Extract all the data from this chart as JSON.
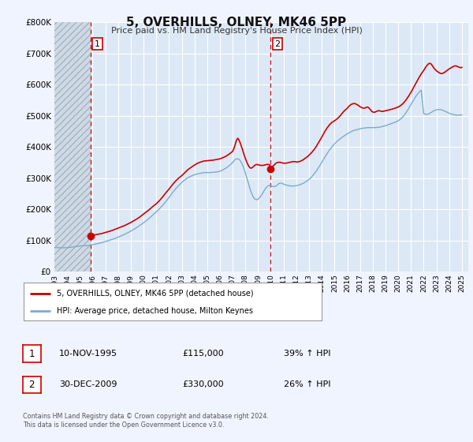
{
  "title": "5, OVERHILLS, OLNEY, MK46 5PP",
  "subtitle": "Price paid vs. HM Land Registry's House Price Index (HPI)",
  "bg_color": "#f0f4ff",
  "plot_bg_color": "#dce8f5",
  "hatch_bg_color": "#c8d8e8",
  "grid_color": "#ffffff",
  "red_line_color": "#cc0000",
  "blue_line_color": "#7aacce",
  "ylim": [
    0,
    800000
  ],
  "yticks": [
    0,
    100000,
    200000,
    300000,
    400000,
    500000,
    600000,
    700000,
    800000
  ],
  "xmin": 1993.0,
  "xmax": 2025.5,
  "xticks": [
    1993,
    1994,
    1995,
    1996,
    1997,
    1998,
    1999,
    2000,
    2001,
    2002,
    2003,
    2004,
    2005,
    2006,
    2007,
    2008,
    2009,
    2010,
    2011,
    2012,
    2013,
    2014,
    2015,
    2016,
    2017,
    2018,
    2019,
    2020,
    2021,
    2022,
    2023,
    2024,
    2025
  ],
  "transaction1_x": 1995.86,
  "transaction1_y": 115000,
  "transaction1_label": "1",
  "transaction1_date": "10-NOV-1995",
  "transaction1_price": "£115,000",
  "transaction1_hpi": "39% ↑ HPI",
  "transaction2_x": 2009.99,
  "transaction2_y": 330000,
  "transaction2_label": "2",
  "transaction2_date": "30-DEC-2009",
  "transaction2_price": "£330,000",
  "transaction2_hpi": "26% ↑ HPI",
  "vline1_x": 1995.86,
  "vline2_x": 2009.99,
  "legend_line1": "5, OVERHILLS, OLNEY, MK46 5PP (detached house)",
  "legend_line2": "HPI: Average price, detached house, Milton Keynes",
  "footer1": "Contains HM Land Registry data © Crown copyright and database right 2024.",
  "footer2": "This data is licensed under the Open Government Licence v3.0.",
  "red_data": [
    [
      1995.86,
      115000
    ],
    [
      1996.0,
      117000
    ],
    [
      1996.25,
      119000
    ],
    [
      1996.5,
      121000
    ],
    [
      1996.75,
      123000
    ],
    [
      1997.0,
      126000
    ],
    [
      1997.25,
      129000
    ],
    [
      1997.5,
      132000
    ],
    [
      1997.75,
      136000
    ],
    [
      1998.0,
      140000
    ],
    [
      1998.25,
      144000
    ],
    [
      1998.5,
      148000
    ],
    [
      1998.75,
      153000
    ],
    [
      1999.0,
      158000
    ],
    [
      1999.25,
      164000
    ],
    [
      1999.5,
      170000
    ],
    [
      1999.75,
      177000
    ],
    [
      2000.0,
      185000
    ],
    [
      2000.25,
      193000
    ],
    [
      2000.5,
      201000
    ],
    [
      2000.75,
      210000
    ],
    [
      2001.0,
      218000
    ],
    [
      2001.25,
      228000
    ],
    [
      2001.5,
      240000
    ],
    [
      2001.75,
      253000
    ],
    [
      2002.0,
      265000
    ],
    [
      2002.25,
      278000
    ],
    [
      2002.5,
      290000
    ],
    [
      2002.75,
      300000
    ],
    [
      2003.0,
      308000
    ],
    [
      2003.25,
      318000
    ],
    [
      2003.5,
      328000
    ],
    [
      2003.75,
      335000
    ],
    [
      2004.0,
      342000
    ],
    [
      2004.25,
      348000
    ],
    [
      2004.5,
      352000
    ],
    [
      2004.75,
      355000
    ],
    [
      2005.0,
      356000
    ],
    [
      2005.25,
      357000
    ],
    [
      2005.5,
      358000
    ],
    [
      2005.75,
      360000
    ],
    [
      2006.0,
      362000
    ],
    [
      2006.25,
      366000
    ],
    [
      2006.5,
      371000
    ],
    [
      2006.75,
      378000
    ],
    [
      2007.0,
      386000
    ],
    [
      2007.1,
      395000
    ],
    [
      2007.2,
      408000
    ],
    [
      2007.3,
      422000
    ],
    [
      2007.4,
      428000
    ],
    [
      2007.5,
      422000
    ],
    [
      2007.6,
      412000
    ],
    [
      2007.7,
      400000
    ],
    [
      2007.8,
      388000
    ],
    [
      2007.9,
      375000
    ],
    [
      2008.0,
      363000
    ],
    [
      2008.1,
      352000
    ],
    [
      2008.2,
      343000
    ],
    [
      2008.3,
      336000
    ],
    [
      2008.4,
      332000
    ],
    [
      2008.5,
      333000
    ],
    [
      2008.6,
      336000
    ],
    [
      2008.7,
      340000
    ],
    [
      2008.8,
      343000
    ],
    [
      2008.9,
      344000
    ],
    [
      2009.0,
      343000
    ],
    [
      2009.1,
      342000
    ],
    [
      2009.2,
      341000
    ],
    [
      2009.3,
      341000
    ],
    [
      2009.4,
      341000
    ],
    [
      2009.5,
      342000
    ],
    [
      2009.6,
      343000
    ],
    [
      2009.7,
      344000
    ],
    [
      2009.8,
      344000
    ],
    [
      2009.9,
      343000
    ],
    [
      2009.99,
      330000
    ],
    [
      2010.1,
      335000
    ],
    [
      2010.2,
      340000
    ],
    [
      2010.3,
      344000
    ],
    [
      2010.4,
      348000
    ],
    [
      2010.5,
      350000
    ],
    [
      2010.6,
      351000
    ],
    [
      2010.7,
      351000
    ],
    [
      2010.8,
      350000
    ],
    [
      2010.9,
      349000
    ],
    [
      2011.0,
      348000
    ],
    [
      2011.1,
      348000
    ],
    [
      2011.2,
      348000
    ],
    [
      2011.3,
      349000
    ],
    [
      2011.4,
      350000
    ],
    [
      2011.5,
      351000
    ],
    [
      2011.6,
      352000
    ],
    [
      2011.7,
      353000
    ],
    [
      2011.8,
      353000
    ],
    [
      2011.9,
      353000
    ],
    [
      2012.0,
      352000
    ],
    [
      2012.1,
      352000
    ],
    [
      2012.2,
      353000
    ],
    [
      2012.3,
      354000
    ],
    [
      2012.4,
      356000
    ],
    [
      2012.5,
      358000
    ],
    [
      2012.6,
      361000
    ],
    [
      2012.7,
      364000
    ],
    [
      2012.8,
      367000
    ],
    [
      2012.9,
      370000
    ],
    [
      2013.0,
      374000
    ],
    [
      2013.2,
      382000
    ],
    [
      2013.4,
      392000
    ],
    [
      2013.6,
      404000
    ],
    [
      2013.8,
      418000
    ],
    [
      2014.0,
      432000
    ],
    [
      2014.2,
      447000
    ],
    [
      2014.4,
      460000
    ],
    [
      2014.6,
      471000
    ],
    [
      2014.8,
      479000
    ],
    [
      2015.0,
      484000
    ],
    [
      2015.2,
      490000
    ],
    [
      2015.4,
      498000
    ],
    [
      2015.6,
      508000
    ],
    [
      2015.8,
      517000
    ],
    [
      2016.0,
      524000
    ],
    [
      2016.1,
      529000
    ],
    [
      2016.2,
      533000
    ],
    [
      2016.3,
      536000
    ],
    [
      2016.4,
      538000
    ],
    [
      2016.5,
      539000
    ],
    [
      2016.6,
      539000
    ],
    [
      2016.7,
      537000
    ],
    [
      2016.8,
      535000
    ],
    [
      2016.9,
      532000
    ],
    [
      2017.0,
      529000
    ],
    [
      2017.1,
      527000
    ],
    [
      2017.2,
      525000
    ],
    [
      2017.3,
      524000
    ],
    [
      2017.4,
      525000
    ],
    [
      2017.5,
      527000
    ],
    [
      2017.6,
      528000
    ],
    [
      2017.7,
      525000
    ],
    [
      2017.8,
      520000
    ],
    [
      2017.9,
      515000
    ],
    [
      2018.0,
      512000
    ],
    [
      2018.1,
      511000
    ],
    [
      2018.2,
      512000
    ],
    [
      2018.3,
      514000
    ],
    [
      2018.4,
      516000
    ],
    [
      2018.5,
      516000
    ],
    [
      2018.6,
      515000
    ],
    [
      2018.7,
      514000
    ],
    [
      2018.8,
      514000
    ],
    [
      2018.9,
      515000
    ],
    [
      2019.0,
      516000
    ],
    [
      2019.2,
      518000
    ],
    [
      2019.4,
      520000
    ],
    [
      2019.6,
      522000
    ],
    [
      2019.8,
      525000
    ],
    [
      2020.0,
      528000
    ],
    [
      2020.2,
      533000
    ],
    [
      2020.4,
      540000
    ],
    [
      2020.6,
      550000
    ],
    [
      2020.8,
      562000
    ],
    [
      2021.0,
      575000
    ],
    [
      2021.2,
      590000
    ],
    [
      2021.4,
      605000
    ],
    [
      2021.6,
      620000
    ],
    [
      2021.8,
      634000
    ],
    [
      2022.0,
      645000
    ],
    [
      2022.1,
      652000
    ],
    [
      2022.2,
      658000
    ],
    [
      2022.3,
      663000
    ],
    [
      2022.4,
      667000
    ],
    [
      2022.5,
      668000
    ],
    [
      2022.6,
      665000
    ],
    [
      2022.7,
      659000
    ],
    [
      2022.8,
      653000
    ],
    [
      2022.9,
      648000
    ],
    [
      2023.0,
      644000
    ],
    [
      2023.1,
      641000
    ],
    [
      2023.2,
      638000
    ],
    [
      2023.3,
      636000
    ],
    [
      2023.4,
      635000
    ],
    [
      2023.5,
      636000
    ],
    [
      2023.6,
      638000
    ],
    [
      2023.7,
      641000
    ],
    [
      2023.8,
      644000
    ],
    [
      2023.9,
      647000
    ],
    [
      2024.0,
      650000
    ],
    [
      2024.2,
      655000
    ],
    [
      2024.4,
      659000
    ],
    [
      2024.5,
      660000
    ],
    [
      2024.6,
      659000
    ],
    [
      2024.7,
      657000
    ],
    [
      2024.8,
      655000
    ],
    [
      2024.9,
      654000
    ],
    [
      2025.0,
      655000
    ]
  ],
  "blue_data": [
    [
      1993.0,
      78000
    ],
    [
      1993.25,
      77500
    ],
    [
      1993.5,
      77000
    ],
    [
      1993.75,
      77000
    ],
    [
      1994.0,
      77500
    ],
    [
      1994.25,
      78500
    ],
    [
      1994.5,
      80000
    ],
    [
      1994.75,
      81500
    ],
    [
      1995.0,
      83000
    ],
    [
      1995.25,
      83500
    ],
    [
      1995.5,
      84000
    ],
    [
      1995.75,
      85000
    ],
    [
      1996.0,
      87000
    ],
    [
      1996.25,
      89000
    ],
    [
      1996.5,
      91500
    ],
    [
      1996.75,
      94000
    ],
    [
      1997.0,
      97000
    ],
    [
      1997.25,
      100000
    ],
    [
      1997.5,
      103500
    ],
    [
      1997.75,
      107000
    ],
    [
      1998.0,
      111000
    ],
    [
      1998.25,
      115500
    ],
    [
      1998.5,
      120000
    ],
    [
      1998.75,
      125000
    ],
    [
      1999.0,
      130500
    ],
    [
      1999.25,
      136500
    ],
    [
      1999.5,
      143000
    ],
    [
      1999.75,
      150000
    ],
    [
      2000.0,
      157000
    ],
    [
      2000.25,
      165000
    ],
    [
      2000.5,
      173500
    ],
    [
      2000.75,
      183000
    ],
    [
      2001.0,
      192000
    ],
    [
      2001.25,
      202000
    ],
    [
      2001.5,
      213000
    ],
    [
      2001.75,
      225000
    ],
    [
      2002.0,
      238000
    ],
    [
      2002.25,
      252000
    ],
    [
      2002.5,
      265000
    ],
    [
      2002.75,
      276000
    ],
    [
      2003.0,
      286000
    ],
    [
      2003.25,
      295000
    ],
    [
      2003.5,
      302000
    ],
    [
      2003.75,
      307000
    ],
    [
      2004.0,
      311000
    ],
    [
      2004.25,
      314000
    ],
    [
      2004.5,
      316000
    ],
    [
      2004.75,
      318000
    ],
    [
      2005.0,
      318000
    ],
    [
      2005.25,
      318000
    ],
    [
      2005.5,
      319000
    ],
    [
      2005.75,
      320000
    ],
    [
      2006.0,
      322000
    ],
    [
      2006.25,
      327000
    ],
    [
      2006.5,
      333000
    ],
    [
      2006.75,
      341000
    ],
    [
      2007.0,
      350000
    ],
    [
      2007.1,
      356000
    ],
    [
      2007.2,
      360000
    ],
    [
      2007.3,
      362000
    ],
    [
      2007.4,
      362000
    ],
    [
      2007.5,
      360000
    ],
    [
      2007.6,
      356000
    ],
    [
      2007.7,
      349000
    ],
    [
      2007.8,
      340000
    ],
    [
      2007.9,
      329000
    ],
    [
      2008.0,
      316000
    ],
    [
      2008.1,
      302000
    ],
    [
      2008.2,
      288000
    ],
    [
      2008.3,
      274000
    ],
    [
      2008.4,
      261000
    ],
    [
      2008.5,
      250000
    ],
    [
      2008.6,
      241000
    ],
    [
      2008.7,
      235000
    ],
    [
      2008.8,
      232000
    ],
    [
      2008.9,
      231000
    ],
    [
      2009.0,
      233000
    ],
    [
      2009.1,
      237000
    ],
    [
      2009.2,
      242000
    ],
    [
      2009.3,
      248000
    ],
    [
      2009.4,
      255000
    ],
    [
      2009.5,
      262000
    ],
    [
      2009.6,
      268000
    ],
    [
      2009.7,
      273000
    ],
    [
      2009.8,
      276000
    ],
    [
      2009.9,
      277000
    ],
    [
      2009.99,
      276000
    ],
    [
      2010.1,
      274000
    ],
    [
      2010.2,
      273000
    ],
    [
      2010.3,
      273000
    ],
    [
      2010.4,
      275000
    ],
    [
      2010.5,
      278000
    ],
    [
      2010.6,
      282000
    ],
    [
      2010.7,
      284000
    ],
    [
      2010.8,
      284000
    ],
    [
      2010.9,
      283000
    ],
    [
      2011.0,
      281000
    ],
    [
      2011.2,
      278000
    ],
    [
      2011.4,
      276000
    ],
    [
      2011.6,
      275000
    ],
    [
      2011.8,
      275000
    ],
    [
      2012.0,
      276000
    ],
    [
      2012.2,
      278000
    ],
    [
      2012.4,
      281000
    ],
    [
      2012.6,
      285000
    ],
    [
      2012.8,
      290000
    ],
    [
      2013.0,
      296000
    ],
    [
      2013.2,
      304000
    ],
    [
      2013.4,
      314000
    ],
    [
      2013.6,
      325000
    ],
    [
      2013.8,
      338000
    ],
    [
      2014.0,
      351000
    ],
    [
      2014.2,
      365000
    ],
    [
      2014.4,
      378000
    ],
    [
      2014.6,
      390000
    ],
    [
      2014.8,
      401000
    ],
    [
      2015.0,
      410000
    ],
    [
      2015.2,
      418000
    ],
    [
      2015.4,
      425000
    ],
    [
      2015.6,
      431000
    ],
    [
      2015.8,
      437000
    ],
    [
      2016.0,
      442000
    ],
    [
      2016.2,
      447000
    ],
    [
      2016.4,
      451000
    ],
    [
      2016.6,
      454000
    ],
    [
      2016.8,
      456000
    ],
    [
      2017.0,
      458000
    ],
    [
      2017.2,
      460000
    ],
    [
      2017.4,
      461000
    ],
    [
      2017.6,
      462000
    ],
    [
      2017.8,
      462000
    ],
    [
      2018.0,
      462000
    ],
    [
      2018.2,
      462000
    ],
    [
      2018.4,
      463000
    ],
    [
      2018.6,
      464000
    ],
    [
      2018.8,
      466000
    ],
    [
      2019.0,
      468000
    ],
    [
      2019.2,
      471000
    ],
    [
      2019.4,
      474000
    ],
    [
      2019.6,
      477000
    ],
    [
      2019.8,
      480000
    ],
    [
      2020.0,
      484000
    ],
    [
      2020.2,
      490000
    ],
    [
      2020.4,
      498000
    ],
    [
      2020.6,
      509000
    ],
    [
      2020.8,
      522000
    ],
    [
      2021.0,
      536000
    ],
    [
      2021.2,
      550000
    ],
    [
      2021.4,
      563000
    ],
    [
      2021.6,
      574000
    ],
    [
      2021.8,
      582000
    ],
    [
      2022.0,
      507000
    ],
    [
      2022.2,
      504000
    ],
    [
      2022.4,
      506000
    ],
    [
      2022.6,
      511000
    ],
    [
      2022.8,
      516000
    ],
    [
      2023.0,
      519000
    ],
    [
      2023.2,
      520000
    ],
    [
      2023.4,
      519000
    ],
    [
      2023.6,
      516000
    ],
    [
      2023.8,
      512000
    ],
    [
      2024.0,
      508000
    ],
    [
      2024.2,
      505000
    ],
    [
      2024.4,
      503000
    ],
    [
      2024.6,
      502000
    ],
    [
      2024.8,
      502000
    ],
    [
      2025.0,
      503000
    ]
  ]
}
